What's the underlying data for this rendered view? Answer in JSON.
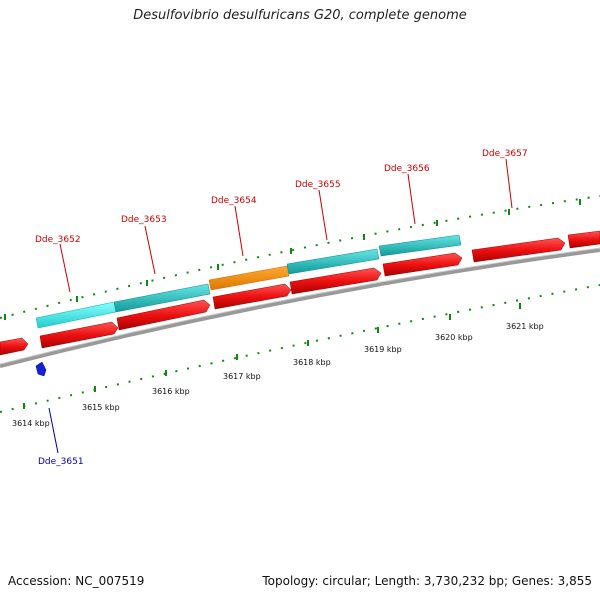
{
  "title": "Desulfovibrio desulfuricans G20, complete genome",
  "accession": "Accession: NC_007519",
  "summary": "Topology: circular; Length: 3,730,232 bp; Genes: 3,855",
  "genes": [
    {
      "name": "Dde_3651",
      "strand": "minus",
      "color": "#0000dd"
    },
    {
      "name": "Dde_3652",
      "strand": "plus",
      "color": "#cc0000"
    },
    {
      "name": "Dde_3653",
      "strand": "plus",
      "color": "#cc0000"
    },
    {
      "name": "Dde_3654",
      "strand": "plus",
      "color": "#cc0000"
    },
    {
      "name": "Dde_3655",
      "strand": "plus",
      "color": "#cc0000"
    },
    {
      "name": "Dde_3656",
      "strand": "plus",
      "color": "#cc0000"
    },
    {
      "name": "Dde_3657",
      "strand": "plus",
      "color": "#cc0000"
    }
  ],
  "scale_labels": [
    "3614 kbp",
    "3615 kbp",
    "3616 kbp",
    "3617 kbp",
    "3618 kbp",
    "3619 kbp",
    "3620 kbp",
    "3621 kbp"
  ],
  "colors": {
    "cds": "#ee1111",
    "cog_cyan": "#22cccc",
    "cog_cyan_light": "#33eeee",
    "cog_orange": "#ff8800",
    "backbone": "#888888",
    "ticks": "#118811"
  }
}
